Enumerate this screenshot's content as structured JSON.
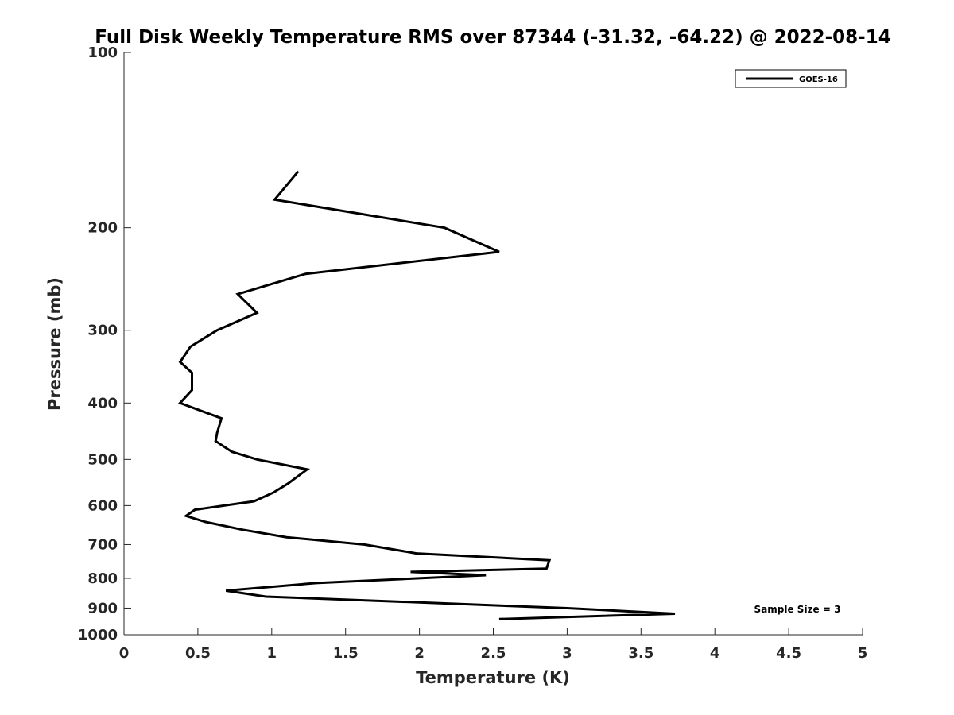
{
  "chart_data": {
    "type": "line",
    "title": "Full Disk Weekly Temperature RMS over 87344 (-31.32, -64.22) @ 2022-08-14",
    "xlabel": "Temperature (K)",
    "ylabel": "Pressure (mb)",
    "xlim": [
      0,
      5
    ],
    "ylim": [
      100,
      1000
    ],
    "yscale": "log",
    "y_reversed": true,
    "xticks": [
      0,
      0.5,
      1,
      1.5,
      2,
      2.5,
      3,
      3.5,
      4,
      4.5,
      5
    ],
    "xtick_labels": [
      "0",
      "0.5",
      "1",
      "1.5",
      "2",
      "2.5",
      "3",
      "3.5",
      "4",
      "4.5",
      "5"
    ],
    "yticks": [
      100,
      200,
      300,
      400,
      500,
      600,
      700,
      800,
      900,
      1000
    ],
    "ytick_labels": [
      "100",
      "200",
      "300",
      "400",
      "500",
      "600",
      "700",
      "800",
      "900",
      "1000"
    ],
    "grid": false,
    "legend_position": "top-right",
    "series": [
      {
        "name": "GOES-16",
        "color": "#000000",
        "x": [
          1.18,
          1.02,
          2.17,
          2.54,
          1.23,
          0.77,
          0.9,
          0.63,
          0.45,
          0.38,
          0.46,
          0.46,
          0.38,
          0.66,
          0.63,
          0.62,
          0.73,
          0.9,
          1.24,
          1.11,
          1.01,
          0.88,
          0.48,
          0.42,
          0.55,
          0.8,
          1.1,
          1.63,
          1.98,
          2.88,
          2.86,
          1.94,
          2.45,
          1.3,
          0.69,
          0.96,
          2.0,
          3.0,
          3.73,
          2.54
        ],
        "y": [
          160,
          179,
          200,
          220,
          240,
          260,
          280,
          300,
          320,
          340,
          355,
          380,
          400,
          425,
          450,
          465,
          485,
          500,
          520,
          550,
          570,
          590,
          610,
          625,
          640,
          660,
          680,
          700,
          725,
          745,
          770,
          780,
          790,
          815,
          840,
          860,
          880,
          900,
          920,
          940
        ]
      }
    ],
    "annotations": [
      {
        "text": "Sample Size = 3",
        "position": "bottom-right"
      }
    ]
  }
}
